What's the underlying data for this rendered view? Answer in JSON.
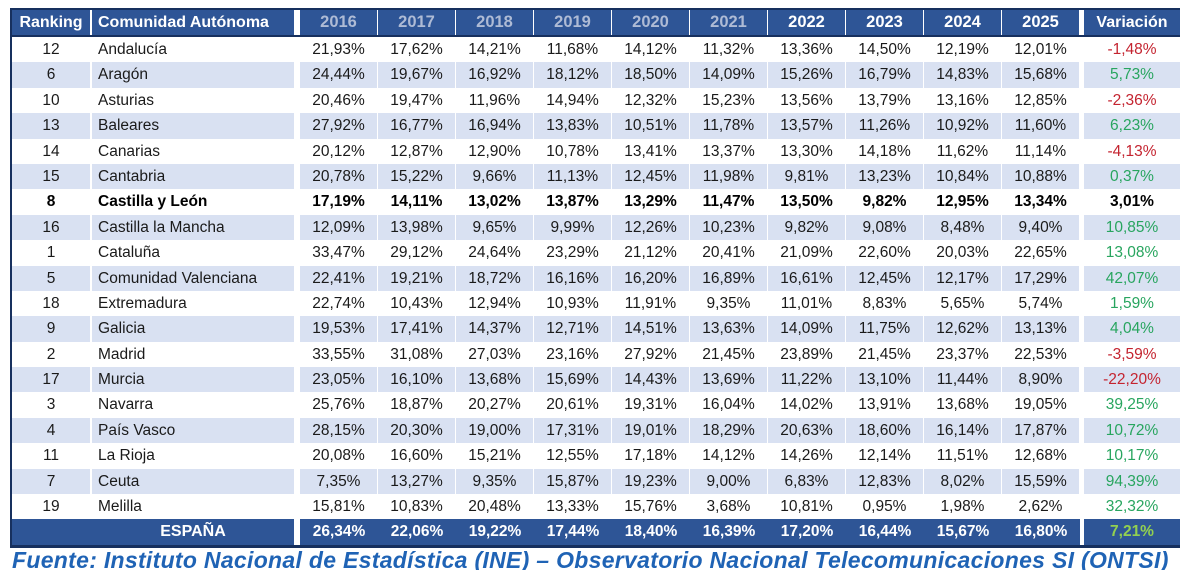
{
  "colors": {
    "header_bg": "#2E5596",
    "border_navy": "#17305E",
    "row_stripe": "#D9E1F2",
    "muted_year_text": "#AEBBD5",
    "positive_green": "#28A55F",
    "negative_red": "#C42430",
    "total_variation_green": "#92D050",
    "source_text_blue": "#1F63B5"
  },
  "table": {
    "headers": {
      "ranking": "Ranking",
      "community": "Comunidad Autónoma",
      "variation": "Variación"
    },
    "years": [
      {
        "label": "2016",
        "muted": true
      },
      {
        "label": "2017",
        "muted": true
      },
      {
        "label": "2018",
        "muted": true
      },
      {
        "label": "2019",
        "muted": true
      },
      {
        "label": "2020",
        "muted": true
      },
      {
        "label": "2021",
        "muted": true
      },
      {
        "label": "2022",
        "muted": false
      },
      {
        "label": "2023",
        "muted": false
      },
      {
        "label": "2024",
        "muted": false
      },
      {
        "label": "2025",
        "muted": false
      }
    ],
    "rows": [
      {
        "ranking": "12",
        "community": "Andalucía",
        "values": [
          "21,93%",
          "17,62%",
          "14,21%",
          "11,68%",
          "14,12%",
          "11,32%",
          "13,36%",
          "14,50%",
          "12,19%",
          "12,01%"
        ],
        "variation": "-1,48%",
        "bold": false
      },
      {
        "ranking": "6",
        "community": "Aragón",
        "values": [
          "24,44%",
          "19,67%",
          "16,92%",
          "18,12%",
          "18,50%",
          "14,09%",
          "15,26%",
          "16,79%",
          "14,83%",
          "15,68%"
        ],
        "variation": "5,73%",
        "bold": false
      },
      {
        "ranking": "10",
        "community": "Asturias",
        "values": [
          "20,46%",
          "19,47%",
          "11,96%",
          "14,94%",
          "12,32%",
          "15,23%",
          "13,56%",
          "13,79%",
          "13,16%",
          "12,85%"
        ],
        "variation": "-2,36%",
        "bold": false
      },
      {
        "ranking": "13",
        "community": "Baleares",
        "values": [
          "27,92%",
          "16,77%",
          "16,94%",
          "13,83%",
          "10,51%",
          "11,78%",
          "13,57%",
          "11,26%",
          "10,92%",
          "11,60%"
        ],
        "variation": "6,23%",
        "bold": false
      },
      {
        "ranking": "14",
        "community": "Canarias",
        "values": [
          "20,12%",
          "12,87%",
          "12,90%",
          "10,78%",
          "13,41%",
          "13,37%",
          "13,30%",
          "14,18%",
          "11,62%",
          "11,14%"
        ],
        "variation": "-4,13%",
        "bold": false
      },
      {
        "ranking": "15",
        "community": "Cantabria",
        "values": [
          "20,78%",
          "15,22%",
          "9,66%",
          "11,13%",
          "12,45%",
          "11,98%",
          "9,81%",
          "13,23%",
          "10,84%",
          "10,88%"
        ],
        "variation": "0,37%",
        "bold": false
      },
      {
        "ranking": "8",
        "community": "Castilla y León",
        "values": [
          "17,19%",
          "14,11%",
          "13,02%",
          "13,87%",
          "13,29%",
          "11,47%",
          "13,50%",
          "9,82%",
          "12,95%",
          "13,34%"
        ],
        "variation": "3,01%",
        "bold": true
      },
      {
        "ranking": "16",
        "community": "Castilla la Mancha",
        "values": [
          "12,09%",
          "13,98%",
          "9,65%",
          "9,99%",
          "12,26%",
          "10,23%",
          "9,82%",
          "9,08%",
          "8,48%",
          "9,40%"
        ],
        "variation": "10,85%",
        "bold": false
      },
      {
        "ranking": "1",
        "community": "Cataluña",
        "values": [
          "33,47%",
          "29,12%",
          "24,64%",
          "23,29%",
          "21,12%",
          "20,41%",
          "21,09%",
          "22,60%",
          "20,03%",
          "22,65%"
        ],
        "variation": "13,08%",
        "bold": false
      },
      {
        "ranking": "5",
        "community": "Comunidad Valenciana",
        "values": [
          "22,41%",
          "19,21%",
          "18,72%",
          "16,16%",
          "16,20%",
          "16,89%",
          "16,61%",
          "12,45%",
          "12,17%",
          "17,29%"
        ],
        "variation": "42,07%",
        "bold": false
      },
      {
        "ranking": "18",
        "community": "Extremadura",
        "values": [
          "22,74%",
          "10,43%",
          "12,94%",
          "10,93%",
          "11,91%",
          "9,35%",
          "11,01%",
          "8,83%",
          "5,65%",
          "5,74%"
        ],
        "variation": "1,59%",
        "bold": false
      },
      {
        "ranking": "9",
        "community": "Galicia",
        "values": [
          "19,53%",
          "17,41%",
          "14,37%",
          "12,71%",
          "14,51%",
          "13,63%",
          "14,09%",
          "11,75%",
          "12,62%",
          "13,13%"
        ],
        "variation": "4,04%",
        "bold": false
      },
      {
        "ranking": "2",
        "community": "Madrid",
        "values": [
          "33,55%",
          "31,08%",
          "27,03%",
          "23,16%",
          "27,92%",
          "21,45%",
          "23,89%",
          "21,45%",
          "23,37%",
          "22,53%"
        ],
        "variation": "-3,59%",
        "bold": false
      },
      {
        "ranking": "17",
        "community": "Murcia",
        "values": [
          "23,05%",
          "16,10%",
          "13,68%",
          "15,69%",
          "14,43%",
          "13,69%",
          "11,22%",
          "13,10%",
          "11,44%",
          "8,90%"
        ],
        "variation": "-22,20%",
        "bold": false
      },
      {
        "ranking": "3",
        "community": "Navarra",
        "values": [
          "25,76%",
          "18,87%",
          "20,27%",
          "20,61%",
          "19,31%",
          "16,04%",
          "14,02%",
          "13,91%",
          "13,68%",
          "19,05%"
        ],
        "variation": "39,25%",
        "bold": false
      },
      {
        "ranking": "4",
        "community": "País Vasco",
        "values": [
          "28,15%",
          "20,30%",
          "19,00%",
          "17,31%",
          "19,01%",
          "18,29%",
          "20,63%",
          "18,60%",
          "16,14%",
          "17,87%"
        ],
        "variation": "10,72%",
        "bold": false
      },
      {
        "ranking": "11",
        "community": "La Rioja",
        "values": [
          "20,08%",
          "16,60%",
          "15,21%",
          "12,55%",
          "17,18%",
          "14,12%",
          "14,26%",
          "12,14%",
          "11,51%",
          "12,68%"
        ],
        "variation": "10,17%",
        "bold": false
      },
      {
        "ranking": "7",
        "community": "Ceuta",
        "values": [
          "7,35%",
          "13,27%",
          "9,35%",
          "15,87%",
          "19,23%",
          "9,00%",
          "6,83%",
          "12,83%",
          "8,02%",
          "15,59%"
        ],
        "variation": "94,39%",
        "bold": false
      },
      {
        "ranking": "19",
        "community": "Melilla",
        "values": [
          "15,81%",
          "10,83%",
          "20,48%",
          "13,33%",
          "15,76%",
          "3,68%",
          "10,81%",
          "0,95%",
          "1,98%",
          "2,62%"
        ],
        "variation": "32,32%",
        "bold": false
      }
    ],
    "total": {
      "label": "ESPAÑA",
      "values": [
        "26,34%",
        "22,06%",
        "19,22%",
        "17,44%",
        "18,40%",
        "16,39%",
        "17,20%",
        "16,44%",
        "15,67%",
        "16,80%"
      ],
      "variation": "7,21%"
    }
  },
  "footer": {
    "source": "Fuente: Instituto Nacional de Estadística (INE) – Observatorio Nacional Telecomunicaciones SI (ONTSI)"
  }
}
